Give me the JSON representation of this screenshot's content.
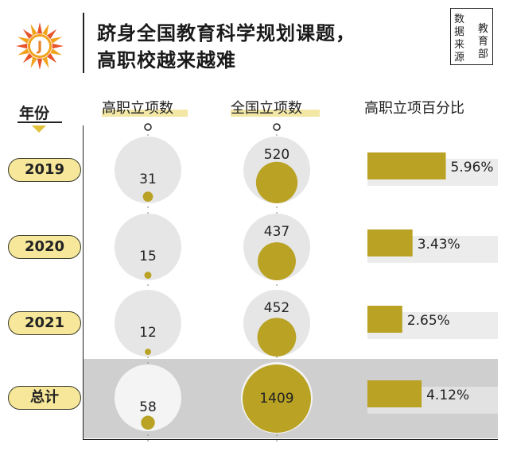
{
  "title": {
    "line1": "跻身全国教育科学规划课题，",
    "line2": "高职校越来越难"
  },
  "source": {
    "label": "数据来源",
    "value": "教育部"
  },
  "logo": {
    "icon": "sun-badge-icon",
    "letter": "J",
    "colors": [
      "#e8542a",
      "#f2a21c",
      "#f7d04a"
    ]
  },
  "headers": {
    "year": "年份",
    "vocational": "高职立项数",
    "national": "全国立项数",
    "percent": "高职立项百分比"
  },
  "colors": {
    "accent": "#b9a224",
    "pill": "#f6e79a",
    "circle_bg": "#e6e6e6",
    "bar_track": "#ececec",
    "total_band": "#cfcfcf"
  },
  "chart_data": {
    "type": "table",
    "categories": [
      "2019",
      "2020",
      "2021",
      "总计"
    ],
    "series": [
      {
        "name": "高职立项数",
        "values": [
          31,
          15,
          12,
          58
        ]
      },
      {
        "name": "全国立项数",
        "values": [
          520,
          437,
          452,
          1409
        ]
      },
      {
        "name": "高职立项百分比",
        "values": [
          5.96,
          3.43,
          2.65,
          4.12
        ],
        "labels": [
          "5.96%",
          "3.43%",
          "2.65%",
          "4.12%"
        ]
      }
    ]
  }
}
